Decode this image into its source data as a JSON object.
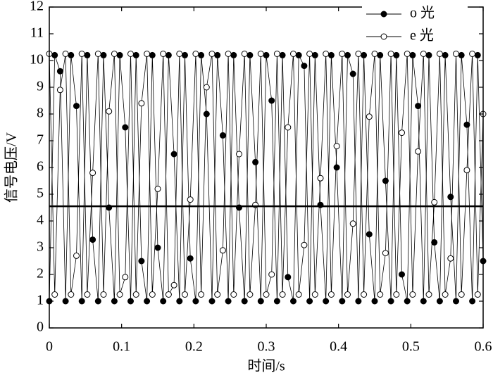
{
  "chart_data": {
    "type": "line",
    "xlabel": "时间/s",
    "ylabel": "信号电压/V",
    "x": [
      0,
      0.0075,
      0.015,
      0.0225,
      0.03,
      0.0375,
      0.045,
      0.0525,
      0.06,
      0.0675,
      0.075,
      0.0825,
      0.09,
      0.0975,
      0.105,
      0.1125,
      0.12,
      0.1275,
      0.135,
      0.1425,
      0.15,
      0.1575,
      0.165,
      0.1725,
      0.18,
      0.1875,
      0.195,
      0.2025,
      0.21,
      0.2175,
      0.225,
      0.2325,
      0.24,
      0.2475,
      0.255,
      0.2625,
      0.27,
      0.2775,
      0.285,
      0.2925,
      0.3,
      0.3075,
      0.315,
      0.3225,
      0.33,
      0.3375,
      0.345,
      0.3525,
      0.36,
      0.3675,
      0.375,
      0.3825,
      0.39,
      0.3975,
      0.405,
      0.4125,
      0.42,
      0.4275,
      0.435,
      0.4425,
      0.45,
      0.4575,
      0.465,
      0.4725,
      0.48,
      0.4875,
      0.495,
      0.5025,
      0.51,
      0.5175,
      0.525,
      0.5325,
      0.54,
      0.5475,
      0.555,
      0.5625,
      0.57,
      0.5775,
      0.585,
      0.5925,
      0.6
    ],
    "series": [
      {
        "name": "o 光",
        "color": "#000000",
        "marker": "filled",
        "values": [
          1.0,
          10.2,
          9.6,
          1.0,
          10.2,
          8.3,
          1.0,
          10.2,
          3.3,
          1.0,
          10.2,
          4.5,
          1.0,
          10.2,
          7.5,
          1.0,
          10.2,
          2.5,
          1.0,
          10.2,
          3.0,
          1.0,
          10.2,
          6.5,
          1.0,
          10.2,
          2.6,
          1.0,
          10.2,
          8.0,
          1.0,
          10.2,
          7.2,
          1.0,
          10.2,
          4.5,
          1.0,
          10.2,
          6.2,
          1.0,
          10.2,
          8.5,
          1.0,
          10.2,
          1.9,
          1.0,
          10.2,
          9.8,
          1.0,
          10.2,
          4.6,
          1.0,
          10.2,
          6.0,
          1.0,
          10.2,
          9.5,
          1.0,
          10.2,
          3.5,
          1.0,
          10.2,
          5.5,
          1.0,
          10.2,
          2.0,
          1.0,
          10.2,
          8.3,
          1.0,
          10.2,
          3.2,
          1.0,
          10.2,
          4.9,
          1.0,
          10.2,
          7.6,
          1.0,
          10.2,
          2.5
        ]
      },
      {
        "name": "e 光",
        "color": "#000000",
        "marker": "open",
        "values": [
          10.25,
          1.25,
          8.9,
          10.25,
          1.25,
          2.7,
          10.25,
          1.25,
          5.8,
          10.25,
          1.25,
          8.1,
          10.25,
          1.25,
          1.9,
          10.25,
          1.25,
          8.4,
          10.25,
          1.25,
          5.2,
          10.25,
          1.25,
          1.6,
          10.25,
          1.25,
          4.8,
          10.25,
          1.25,
          9.0,
          10.25,
          1.25,
          2.9,
          10.25,
          1.25,
          6.5,
          10.25,
          1.25,
          4.6,
          10.25,
          1.25,
          2.0,
          10.25,
          1.25,
          7.5,
          10.25,
          1.25,
          3.1,
          10.25,
          1.25,
          5.6,
          10.25,
          1.25,
          6.8,
          10.25,
          1.25,
          3.9,
          10.25,
          1.25,
          7.9,
          10.25,
          1.25,
          2.8,
          10.25,
          1.25,
          7.3,
          10.25,
          1.25,
          6.6,
          10.25,
          1.25,
          4.7,
          10.25,
          1.25,
          2.6,
          10.25,
          1.25,
          5.9,
          10.25,
          1.25,
          8.0
        ]
      }
    ],
    "reference_line": 4.55,
    "xlim": [
      0,
      0.6
    ],
    "xticks": [
      0,
      0.1,
      0.2,
      0.3,
      0.4,
      0.5,
      0.6
    ],
    "ylim": [
      0,
      12
    ],
    "yticks": [
      0,
      1,
      2,
      3,
      4,
      5,
      6,
      7,
      8,
      9,
      10,
      11,
      12
    ],
    "legend": "upper right",
    "grid": false
  }
}
